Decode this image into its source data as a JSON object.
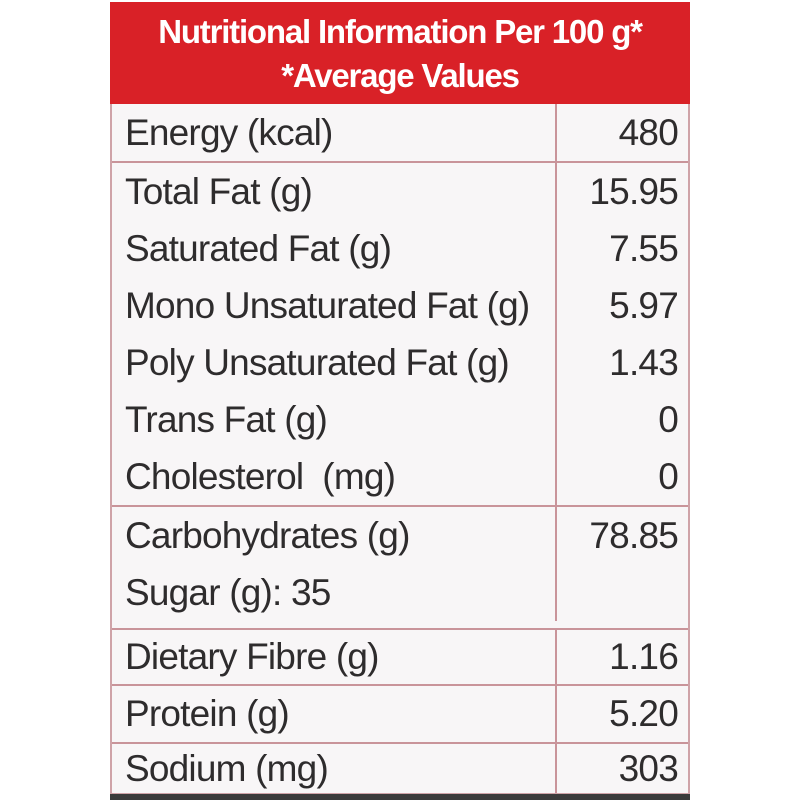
{
  "header": {
    "title_line1": "Nutritional Information Per 100 g*",
    "title_line2": "*Average Values",
    "bg_color": "#d92127",
    "text_color": "#ffffff"
  },
  "table": {
    "border_color": "#c9949a",
    "text_color": "#2e2c2d",
    "groups": [
      {
        "rows": [
          {
            "label": "Energy (kcal)",
            "value": "480"
          }
        ]
      },
      {
        "rows": [
          {
            "label": "Total Fat (g)",
            "value": "15.95"
          },
          {
            "label": "Saturated Fat (g)",
            "value": "7.55"
          },
          {
            "label": "Mono Unsaturated Fat (g)",
            "value": "5.97"
          },
          {
            "label": "Poly Unsaturated Fat (g)",
            "value": "1.43"
          },
          {
            "label": "Trans Fat (g)",
            "value": "0"
          },
          {
            "label": "Cholesterol  (mg)",
            "value": "0"
          }
        ]
      },
      {
        "rows": [
          {
            "label": "Carbohydrates (g)",
            "value": "78.85"
          },
          {
            "label": "Sugar (g): 35",
            "value": ""
          }
        ]
      },
      {
        "rows": [
          {
            "label": "Dietary Fibre (g)",
            "value": "1.16"
          }
        ]
      },
      {
        "rows": [
          {
            "label": "Protein (g)",
            "value": "5.20"
          }
        ]
      },
      {
        "rows": [
          {
            "label": "Sodium (mg)",
            "value": "303"
          }
        ]
      }
    ]
  }
}
